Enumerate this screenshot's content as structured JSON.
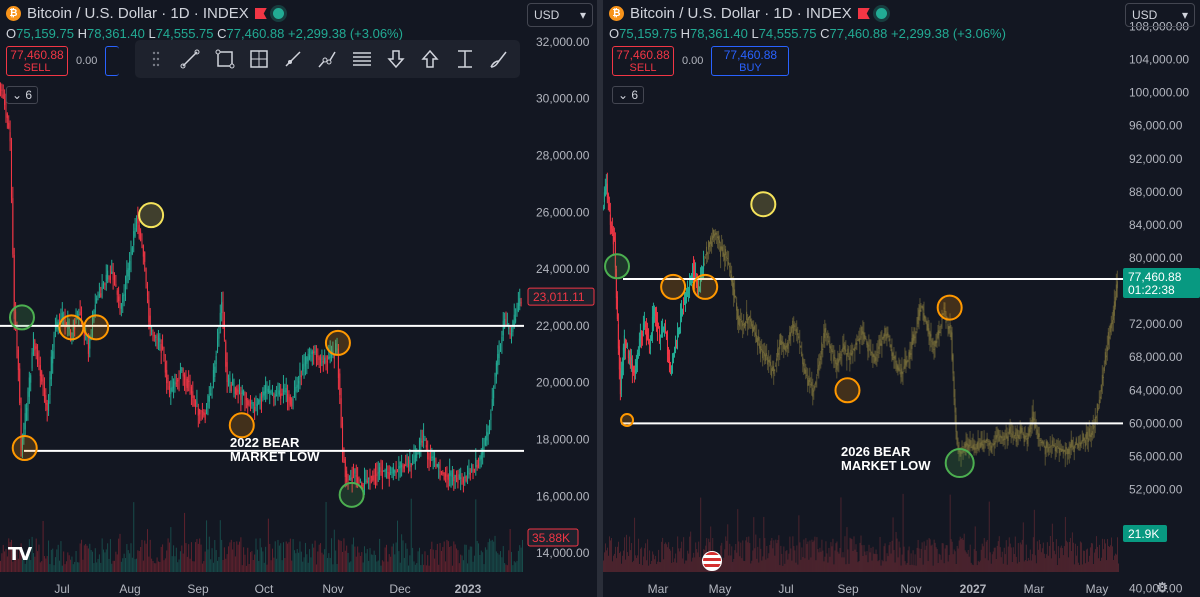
{
  "colors": {
    "up": "#22ab94",
    "down": "#f23645",
    "line": "#ffffff",
    "green_ring": "#4caf50",
    "orange_ring": "#ff9800",
    "yellow_ring": "#f5e35b",
    "ghost": "#8d7f3f",
    "price_tag_green": "#089981"
  },
  "left": {
    "title": "Bitcoin / U.S. Dollar · 1D · INDEX",
    "ohlc": {
      "o_label": "O",
      "o": "75,159.75",
      "h_label": "H",
      "h": "78,361.40",
      "l_label": "L",
      "l": "74,555.75",
      "c_label": "C",
      "c": "77,460.88",
      "chg": "+2,299.38 (+3.06%)"
    },
    "sell_price": "77,460.88",
    "sell_label": "SELL",
    "qty": "0.00",
    "currency": "USD",
    "indicator_count": "6",
    "logo": "TV",
    "annotation": [
      "2022 BEAR",
      "MARKET LOW"
    ],
    "last_price": "23,011.11",
    "volume_label": "35.88K",
    "tools": [
      "cursor-tool-icon",
      "trend-line-icon",
      "rectangle-icon",
      "crosshair-box-icon",
      "ray-icon",
      "path-icon",
      "parallel-lines-icon",
      "arrow-down-icon",
      "arrow-up-icon",
      "measure-icon",
      "brush-icon"
    ]
  },
  "right": {
    "title": "Bitcoin / U.S. Dollar · 1D · INDEX",
    "ohlc": {
      "o_label": "O",
      "o": "75,159.75",
      "h_label": "H",
      "h": "78,361.40",
      "l_label": "L",
      "l": "74,555.75",
      "c_label": "C",
      "c": "77,460.88",
      "chg": "+2,299.38 (+3.06%)"
    },
    "sell_price": "77,460.88",
    "sell_label": "SELL",
    "buy_price": "77,460.88",
    "buy_label": "BUY",
    "qty": "0.00",
    "currency": "USD",
    "indicator_count": "6",
    "annotation": [
      "2026 BEAR",
      "MARKET LOW"
    ],
    "last_price": "77,460.88",
    "countdown": "01:22:38",
    "volume_label": "21.9K"
  },
  "chart_data": [
    {
      "type": "candlestick",
      "title": "Bitcoin / U.S. Dollar · 1D · INDEX",
      "x_ticks": [
        "Jul",
        "Aug",
        "Sep",
        "Oct",
        "Nov",
        "Dec",
        "2023"
      ],
      "y_ticks": [
        14000,
        16000,
        18000,
        20000,
        22000,
        24000,
        26000,
        28000,
        30000,
        32000
      ],
      "ylim": [
        12700,
        33300
      ],
      "price_path": [
        [
          0,
          30500
        ],
        [
          4,
          29800
        ],
        [
          8,
          28500
        ],
        [
          11,
          22500
        ],
        [
          14,
          20500
        ],
        [
          16,
          17700
        ],
        [
          20,
          19000
        ],
        [
          25,
          21500
        ],
        [
          30,
          20400
        ],
        [
          35,
          19000
        ],
        [
          40,
          21800
        ],
        [
          46,
          22300
        ],
        [
          52,
          21700
        ],
        [
          58,
          22500
        ],
        [
          65,
          21200
        ],
        [
          70,
          22800
        ],
        [
          76,
          23500
        ],
        [
          82,
          23900
        ],
        [
          88,
          22600
        ],
        [
          95,
          24200
        ],
        [
          100,
          25800
        ],
        [
          105,
          24600
        ],
        [
          110,
          21800
        ],
        [
          118,
          21300
        ],
        [
          124,
          19600
        ],
        [
          132,
          20400
        ],
        [
          138,
          20000
        ],
        [
          144,
          19100
        ],
        [
          150,
          18900
        ],
        [
          156,
          20200
        ],
        [
          162,
          22900
        ],
        [
          166,
          20000
        ],
        [
          172,
          19800
        ],
        [
          180,
          19400
        ],
        [
          186,
          19100
        ],
        [
          194,
          19700
        ],
        [
          200,
          19500
        ],
        [
          207,
          19700
        ],
        [
          213,
          19400
        ],
        [
          220,
          20400
        ],
        [
          228,
          21100
        ],
        [
          236,
          20700
        ],
        [
          243,
          21000
        ],
        [
          246,
          21200
        ],
        [
          250,
          17700
        ],
        [
          253,
          16500
        ],
        [
          258,
          16800
        ],
        [
          264,
          16400
        ],
        [
          270,
          16700
        ],
        [
          278,
          16900
        ],
        [
          286,
          16800
        ],
        [
          294,
          17100
        ],
        [
          302,
          17200
        ],
        [
          308,
          18100
        ],
        [
          312,
          17500
        ],
        [
          320,
          16900
        ],
        [
          328,
          16700
        ],
        [
          336,
          16600
        ],
        [
          344,
          16900
        ],
        [
          350,
          17300
        ],
        [
          356,
          18300
        ],
        [
          362,
          20600
        ],
        [
          368,
          22200
        ],
        [
          372,
          21600
        ],
        [
          378,
          22700
        ],
        [
          380,
          23000
        ]
      ],
      "horizontal_lines": [
        22000,
        17600
      ],
      "annotation": "2022 BEAR MARKET LOW",
      "last_price": 23011.11
    },
    {
      "type": "candlestick",
      "title": "Bitcoin / U.S. Dollar · 1D · INDEX",
      "x_ticks": [
        "Mar",
        "May",
        "Jul",
        "Sep",
        "Nov",
        "2027",
        "Mar",
        "May"
      ],
      "y_ticks": [
        40000,
        52000,
        56000,
        60000,
        64000,
        68000,
        72000,
        76000,
        80000,
        84000,
        88000,
        92000,
        96000,
        100000,
        104000,
        108000
      ],
      "ylim": [
        39000,
        111200
      ],
      "price_path": [
        [
          0,
          86000
        ],
        [
          4,
          89000
        ],
        [
          8,
          84000
        ],
        [
          12,
          82000
        ],
        [
          15,
          72000
        ],
        [
          18,
          64000
        ],
        [
          22,
          70000
        ],
        [
          27,
          68000
        ],
        [
          32,
          66000
        ],
        [
          37,
          70000
        ],
        [
          42,
          72000
        ],
        [
          47,
          69000
        ],
        [
          52,
          74000
        ],
        [
          57,
          70000
        ],
        [
          62,
          72000
        ],
        [
          68,
          66000
        ],
        [
          74,
          70000
        ],
        [
          80,
          74000
        ],
        [
          86,
          76000
        ],
        [
          90,
          79000
        ],
        [
          96,
          76000
        ],
        [
          102,
          80000
        ],
        [
          108,
          82000
        ],
        [
          113,
          83000
        ],
        [
          118,
          81000
        ],
        [
          124,
          80000
        ],
        [
          130,
          77000
        ],
        [
          135,
          73000
        ],
        [
          140,
          72000
        ],
        [
          146,
          73000
        ],
        [
          152,
          71000
        ],
        [
          158,
          69000
        ],
        [
          164,
          68000
        ],
        [
          170,
          66000
        ],
        [
          178,
          70000
        ],
        [
          184,
          69000
        ],
        [
          190,
          72000
        ],
        [
          196,
          70000
        ],
        [
          202,
          66000
        ],
        [
          210,
          64000
        ],
        [
          216,
          67000
        ],
        [
          222,
          71000
        ],
        [
          228,
          69000
        ],
        [
          234,
          67000
        ],
        [
          240,
          69000
        ],
        [
          246,
          68000
        ],
        [
          254,
          70000
        ],
        [
          260,
          71000
        ],
        [
          266,
          69000
        ],
        [
          272,
          68000
        ],
        [
          278,
          70000
        ],
        [
          284,
          71000
        ],
        [
          290,
          68000
        ],
        [
          298,
          66000
        ],
        [
          306,
          68000
        ],
        [
          312,
          71000
        ],
        [
          318,
          74000
        ],
        [
          324,
          72000
        ],
        [
          330,
          69000
        ],
        [
          336,
          71000
        ],
        [
          340,
          74000
        ],
        [
          344,
          72000
        ],
        [
          348,
          71000
        ],
        [
          351,
          63000
        ],
        [
          354,
          57000
        ],
        [
          358,
          56500
        ],
        [
          364,
          57500
        ],
        [
          370,
          56800
        ],
        [
          376,
          57000
        ],
        [
          382,
          58000
        ],
        [
          388,
          57200
        ],
        [
          394,
          58500
        ],
        [
          400,
          58000
        ],
        [
          406,
          58800
        ],
        [
          412,
          58400
        ],
        [
          418,
          58900
        ],
        [
          424,
          58100
        ],
        [
          430,
          60600
        ],
        [
          436,
          57900
        ],
        [
          442,
          57000
        ],
        [
          448,
          57300
        ],
        [
          454,
          57100
        ],
        [
          460,
          56800
        ],
        [
          466,
          57000
        ],
        [
          472,
          57400
        ],
        [
          478,
          57800
        ],
        [
          484,
          58200
        ],
        [
          490,
          59500
        ],
        [
          496,
          63000
        ],
        [
          502,
          68000
        ],
        [
          506,
          71000
        ],
        [
          510,
          73000
        ],
        [
          514,
          77460
        ]
      ],
      "horizontal_lines": [
        77460,
        60000
      ],
      "annotation": "2026 BEAR MARKET LOW",
      "last_price": 77460.88
    }
  ]
}
